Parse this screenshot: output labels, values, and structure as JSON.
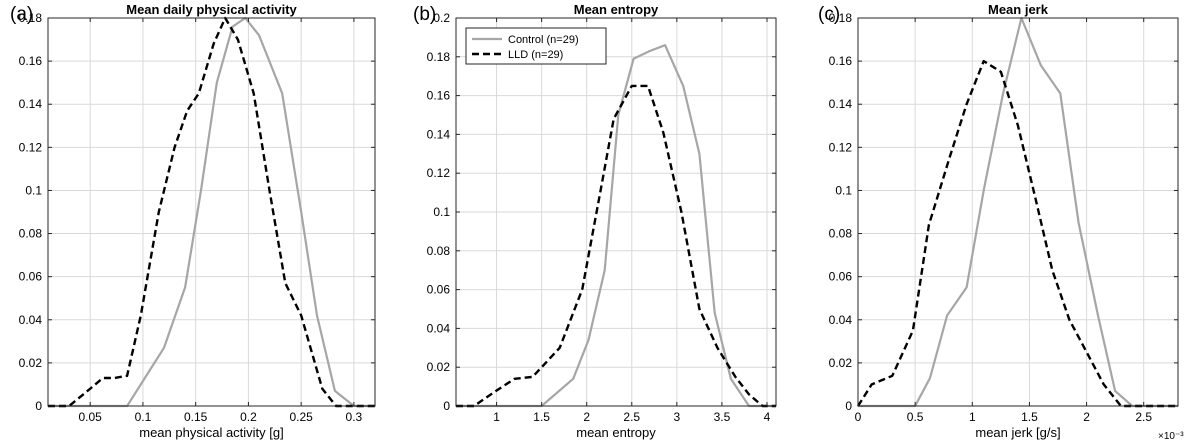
{
  "chart_data": [
    {
      "type": "line",
      "panel_label": "(a)",
      "title": "Mean daily physical activity",
      "xlabel": "mean physical activity [g]",
      "ylabel": "",
      "xlim": [
        0.01,
        0.32
      ],
      "ylim": [
        0,
        0.18
      ],
      "xticks": [
        0.05,
        0.1,
        0.15,
        0.2,
        0.25,
        0.3
      ],
      "xtick_labels": [
        "0.05",
        "0.1",
        "0.15",
        "0.2",
        "0.25",
        "0.3"
      ],
      "yticks": [
        0,
        0.02,
        0.04,
        0.06,
        0.08,
        0.1,
        0.12,
        0.14,
        0.16,
        0.18
      ],
      "ytick_labels": [
        "0",
        "0.02",
        "0.04",
        "0.06",
        "0.08",
        "0.1",
        "0.12",
        "0.14",
        "0.16",
        "0.18"
      ],
      "grid": true,
      "series": [
        {
          "name": "Control (n=29)",
          "color": "#a6a6a6",
          "style": "solid",
          "points": [
            [
              0.01,
              0
            ],
            [
              0.085,
              0
            ],
            [
              0.12,
              0.027
            ],
            [
              0.14,
              0.055
            ],
            [
              0.155,
              0.1
            ],
            [
              0.17,
              0.15
            ],
            [
              0.185,
              0.176
            ],
            [
              0.197,
              0.18
            ],
            [
              0.21,
              0.172
            ],
            [
              0.232,
              0.145
            ],
            [
              0.25,
              0.09
            ],
            [
              0.265,
              0.042
            ],
            [
              0.282,
              0.007
            ],
            [
              0.3,
              0
            ],
            [
              0.32,
              0
            ]
          ]
        },
        {
          "name": "LLD (n=29)",
          "color": "#000000",
          "style": "dashed",
          "points": [
            [
              0.01,
              0
            ],
            [
              0.03,
              0
            ],
            [
              0.045,
              0.006
            ],
            [
              0.062,
              0.013
            ],
            [
              0.073,
              0.013
            ],
            [
              0.085,
              0.014
            ],
            [
              0.098,
              0.042
            ],
            [
              0.115,
              0.09
            ],
            [
              0.13,
              0.12
            ],
            [
              0.142,
              0.137
            ],
            [
              0.153,
              0.145
            ],
            [
              0.167,
              0.168
            ],
            [
              0.178,
              0.18
            ],
            [
              0.19,
              0.17
            ],
            [
              0.205,
              0.145
            ],
            [
              0.22,
              0.1
            ],
            [
              0.235,
              0.057
            ],
            [
              0.25,
              0.042
            ],
            [
              0.27,
              0.008
            ],
            [
              0.283,
              0
            ],
            [
              0.32,
              0
            ]
          ]
        }
      ]
    },
    {
      "type": "line",
      "panel_label": "(b)",
      "title": "Mean entropy",
      "xlabel": "mean entropy",
      "ylabel": "",
      "xlim": [
        0.55,
        4.1
      ],
      "ylim": [
        0,
        0.2
      ],
      "xticks": [
        1,
        1.5,
        2,
        2.5,
        3,
        3.5,
        4
      ],
      "xtick_labels": [
        "1",
        "1.5",
        "2",
        "2.5",
        "3",
        "3.5",
        "4"
      ],
      "yticks": [
        0,
        0.02,
        0.04,
        0.06,
        0.08,
        0.1,
        0.12,
        0.14,
        0.16,
        0.18,
        0.2
      ],
      "ytick_labels": [
        "0",
        "0.02",
        "0.04",
        "0.06",
        "0.08",
        "0.1",
        "0.12",
        "0.14",
        "0.16",
        "0.18",
        "0.2"
      ],
      "grid": true,
      "legend": {
        "placement": "top-left",
        "entries": [
          "Control (n=29)",
          "LLD (n=29)"
        ]
      },
      "series": [
        {
          "name": "Control (n=29)",
          "color": "#a6a6a6",
          "style": "solid",
          "points": [
            [
              0.55,
              0
            ],
            [
              1.5,
              0
            ],
            [
              1.85,
              0.014
            ],
            [
              2.02,
              0.034
            ],
            [
              2.2,
              0.07
            ],
            [
              2.35,
              0.15
            ],
            [
              2.52,
              0.179
            ],
            [
              2.7,
              0.183
            ],
            [
              2.87,
              0.186
            ],
            [
              3.07,
              0.165
            ],
            [
              3.25,
              0.13
            ],
            [
              3.42,
              0.048
            ],
            [
              3.6,
              0.014
            ],
            [
              3.8,
              0
            ],
            [
              4.1,
              0
            ]
          ]
        },
        {
          "name": "LLD (n=29)",
          "color": "#000000",
          "style": "dashed",
          "points": [
            [
              0.55,
              0
            ],
            [
              0.75,
              0
            ],
            [
              1.0,
              0.008
            ],
            [
              1.2,
              0.014
            ],
            [
              1.4,
              0.015
            ],
            [
              1.7,
              0.03
            ],
            [
              1.95,
              0.06
            ],
            [
              2.15,
              0.11
            ],
            [
              2.3,
              0.148
            ],
            [
              2.5,
              0.165
            ],
            [
              2.68,
              0.165
            ],
            [
              2.85,
              0.141
            ],
            [
              3.05,
              0.1
            ],
            [
              3.25,
              0.05
            ],
            [
              3.45,
              0.03
            ],
            [
              3.65,
              0.015
            ],
            [
              3.8,
              0.006
            ],
            [
              3.95,
              0
            ],
            [
              4.1,
              0
            ]
          ]
        }
      ]
    },
    {
      "type": "line",
      "panel_label": "(c)",
      "title": "Mean jerk",
      "xlabel": "mean jerk [g/s]",
      "ylabel": "",
      "x_exponent_label": "×10⁻³",
      "xlim": [
        0,
        2.8
      ],
      "ylim": [
        0,
        0.18
      ],
      "xticks": [
        0,
        0.5,
        1,
        1.5,
        2,
        2.5
      ],
      "xtick_labels": [
        "0",
        "0.5",
        "1",
        "1.5",
        "2",
        "2.5"
      ],
      "yticks": [
        0,
        0.02,
        0.04,
        0.06,
        0.08,
        0.1,
        0.12,
        0.14,
        0.16,
        0.18
      ],
      "ytick_labels": [
        "0",
        "0.02",
        "0.04",
        "0.06",
        "0.08",
        "0.1",
        "0.12",
        "0.14",
        "0.16",
        "0.18"
      ],
      "grid": true,
      "series": [
        {
          "name": "Control (n=29)",
          "color": "#a6a6a6",
          "style": "solid",
          "points": [
            [
              0,
              0
            ],
            [
              0.5,
              0
            ],
            [
              0.63,
              0.013
            ],
            [
              0.78,
              0.042
            ],
            [
              0.95,
              0.055
            ],
            [
              1.1,
              0.1
            ],
            [
              1.27,
              0.145
            ],
            [
              1.43,
              0.18
            ],
            [
              1.6,
              0.158
            ],
            [
              1.77,
              0.145
            ],
            [
              1.93,
              0.085
            ],
            [
              2.1,
              0.042
            ],
            [
              2.25,
              0.007
            ],
            [
              2.4,
              0
            ],
            [
              2.8,
              0
            ]
          ]
        },
        {
          "name": "LLD (n=29)",
          "color": "#000000",
          "style": "dashed",
          "points": [
            [
              0,
              0
            ],
            [
              0.12,
              0.01
            ],
            [
              0.3,
              0.014
            ],
            [
              0.48,
              0.035
            ],
            [
              0.62,
              0.084
            ],
            [
              0.8,
              0.115
            ],
            [
              0.95,
              0.14
            ],
            [
              1.1,
              0.16
            ],
            [
              1.25,
              0.155
            ],
            [
              1.4,
              0.13
            ],
            [
              1.55,
              0.097
            ],
            [
              1.7,
              0.063
            ],
            [
              1.85,
              0.04
            ],
            [
              2.0,
              0.025
            ],
            [
              2.15,
              0.01
            ],
            [
              2.3,
              0
            ],
            [
              2.8,
              0
            ]
          ]
        }
      ]
    }
  ]
}
